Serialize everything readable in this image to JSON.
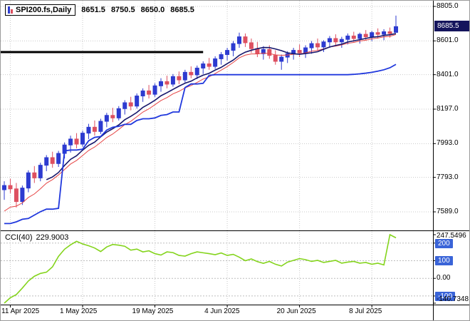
{
  "header": {
    "symbol": "SPI200.fs,Daily",
    "open": "8651.5",
    "high": "8750.5",
    "low": "8650.0",
    "close": "8685.5"
  },
  "indicator": {
    "name": "CCI(40)",
    "value": "229.9003"
  },
  "colors": {
    "bull": "#2d3bd0",
    "bear": "#dd5060",
    "ma_red": "#e64545",
    "ma_navy": "#16166b",
    "trail": "#2038dd",
    "cci": "#84d41c",
    "grid": "#c9c9c9",
    "level": "#bdbdbd",
    "badge_blue": "#3a64d8",
    "badge_dark": "#14145c",
    "axis_text": "#000000",
    "background": "#ffffff",
    "object_line": "#000000"
  },
  "chart_data": {
    "type": "candlestick",
    "title": "SPI200.fs Daily with CCI(40)",
    "x_ticks": [
      {
        "label": "11 Apr 2025",
        "index": 1
      },
      {
        "label": "1 May 2025",
        "index": 13
      },
      {
        "label": "19 May 2025",
        "index": 25
      },
      {
        "label": "4 Jun 2025",
        "index": 37
      },
      {
        "label": "20 Jun 2025",
        "index": 49
      },
      {
        "label": "8 Jul 2025",
        "index": 61
      }
    ],
    "price_pane": {
      "y_ticks": [
        {
          "label": "8805.0",
          "price": 8805.0
        },
        {
          "label": "8601.0",
          "price": 8601.0
        },
        {
          "label": "8401.0",
          "price": 8401.0
        },
        {
          "label": "8197.0",
          "price": 8197.0
        },
        {
          "label": "7993.0",
          "price": 7993.0
        },
        {
          "label": "7793.0",
          "price": 7793.0
        },
        {
          "label": "7589.0",
          "price": 7589.0
        }
      ],
      "last_price": 8685.5,
      "ma_navy": {
        "type": "sma",
        "period": 8
      },
      "ma_red": {
        "type": "ema",
        "alpha": 0.18,
        "seed_offset": -185
      },
      "hline": {
        "price": 8535,
        "to_index": 33
      },
      "candles": [
        [
          7720,
          7770,
          7660,
          7745
        ],
        [
          7745,
          7785,
          7700,
          7725
        ],
        [
          7725,
          7760,
          7615,
          7650
        ],
        [
          7650,
          7745,
          7630,
          7730
        ],
        [
          7730,
          7835,
          7705,
          7820
        ],
        [
          7820,
          7860,
          7760,
          7790
        ],
        [
          7790,
          7880,
          7770,
          7865
        ],
        [
          7865,
          7925,
          7830,
          7910
        ],
        [
          7910,
          7945,
          7850,
          7875
        ],
        [
          7875,
          7950,
          7855,
          7935
        ],
        [
          7935,
          8000,
          7905,
          7985
        ],
        [
          7985,
          8040,
          7940,
          8020
        ],
        [
          8020,
          8055,
          7965,
          7990
        ],
        [
          7990,
          8070,
          7975,
          8055
        ],
        [
          8055,
          8110,
          8020,
          8090
        ],
        [
          8090,
          8130,
          8040,
          8065
        ],
        [
          8065,
          8140,
          8050,
          8125
        ],
        [
          8125,
          8175,
          8090,
          8160
        ],
        [
          8160,
          8205,
          8120,
          8145
        ],
        [
          8145,
          8215,
          8130,
          8200
        ],
        [
          8200,
          8250,
          8165,
          8235
        ],
        [
          8235,
          8270,
          8190,
          8215
        ],
        [
          8215,
          8290,
          8200,
          8275
        ],
        [
          8275,
          8320,
          8240,
          8305
        ],
        [
          8305,
          8340,
          8260,
          8285
        ],
        [
          8285,
          8350,
          8270,
          8335
        ],
        [
          8335,
          8380,
          8300,
          8360
        ],
        [
          8360,
          8395,
          8320,
          8345
        ],
        [
          8345,
          8405,
          8330,
          8390
        ],
        [
          8390,
          8420,
          8345,
          8370
        ],
        [
          8370,
          8430,
          8355,
          8415
        ],
        [
          8415,
          8450,
          8380,
          8400
        ],
        [
          8400,
          8455,
          8375,
          8440
        ],
        [
          8440,
          8480,
          8405,
          8465
        ],
        [
          8465,
          8500,
          8430,
          8450
        ],
        [
          8450,
          8510,
          8435,
          8495
        ],
        [
          8495,
          8535,
          8460,
          8520
        ],
        [
          8520,
          8560,
          8485,
          8545
        ],
        [
          8545,
          8600,
          8510,
          8585
        ],
        [
          8585,
          8650,
          8560,
          8625
        ],
        [
          8625,
          8645,
          8565,
          8590
        ],
        [
          8590,
          8615,
          8530,
          8555
        ],
        [
          8555,
          8595,
          8505,
          8525
        ],
        [
          8525,
          8570,
          8490,
          8550
        ],
        [
          8550,
          8575,
          8495,
          8515
        ],
        [
          8515,
          8545,
          8460,
          8480
        ],
        [
          8480,
          8520,
          8430,
          8505
        ],
        [
          8505,
          8540,
          8470,
          8525
        ],
        [
          8525,
          8560,
          8490,
          8545
        ],
        [
          8545,
          8580,
          8505,
          8530
        ],
        [
          8530,
          8575,
          8500,
          8560
        ],
        [
          8560,
          8600,
          8525,
          8585
        ],
        [
          8585,
          8615,
          8545,
          8565
        ],
        [
          8565,
          8605,
          8535,
          8595
        ],
        [
          8595,
          8630,
          8560,
          8615
        ],
        [
          8615,
          8640,
          8575,
          8595
        ],
        [
          8595,
          8625,
          8560,
          8610
        ],
        [
          8610,
          8645,
          8580,
          8630
        ],
        [
          8630,
          8655,
          8595,
          8615
        ],
        [
          8615,
          8650,
          8585,
          8640
        ],
        [
          8640,
          8665,
          8605,
          8625
        ],
        [
          8625,
          8660,
          8600,
          8650
        ],
        [
          8650,
          8675,
          8615,
          8640
        ],
        [
          8640,
          8670,
          8605,
          8655
        ],
        [
          8655,
          8680,
          8620,
          8645
        ],
        [
          8651.5,
          8750.5,
          8650.0,
          8685.5
        ]
      ],
      "trail": {
        "values": [
          7520,
          7520,
          7530,
          7545,
          7550,
          7570,
          7590,
          7605,
          7605,
          7610,
          7950,
          7955,
          7955,
          7960,
          8010,
          8030,
          8035,
          8073,
          8090,
          8095,
          8107,
          8107,
          8130,
          8140,
          8140,
          8145,
          8160,
          8165,
          8180,
          8180,
          8325,
          8346,
          8346,
          8350,
          8397,
          8401,
          8401,
          8401,
          8401,
          8401,
          8401,
          8401,
          8401,
          8401,
          8401,
          8401,
          8401,
          8401,
          8401,
          8401,
          8401,
          8401,
          8401,
          8401,
          8401,
          8401,
          8401,
          8401,
          8403,
          8406,
          8410,
          8415,
          8422,
          8430,
          8442,
          8462
        ]
      }
    },
    "cci_pane": {
      "label": "CCI(40)",
      "current_value": 229.9003,
      "levels": [
        200,
        100,
        0,
        -100
      ],
      "ticks": [
        {
          "label": "247.5496",
          "value": 247.5496,
          "style": "plain"
        },
        {
          "label": "200",
          "value": 200,
          "style": "badge"
        },
        {
          "label": "100",
          "value": 100,
          "style": "badge"
        },
        {
          "label": "0.00",
          "value": 0,
          "style": "plain"
        },
        {
          "label": "-100",
          "value": -100,
          "style": "badge"
        },
        {
          "label": "-140.7348",
          "value": -140.7348,
          "style": "plain"
        }
      ],
      "values": [
        -140.7348,
        -110,
        -92,
        -55,
        -15,
        12,
        28,
        35,
        65,
        125,
        165,
        190,
        210,
        195,
        185,
        172,
        152,
        178,
        192,
        188,
        182,
        160,
        166,
        150,
        156,
        140,
        132,
        150,
        146,
        130,
        126,
        140,
        150,
        145,
        140,
        134,
        144,
        130,
        136,
        120,
        100,
        110,
        95,
        85,
        96,
        80,
        70,
        92,
        102,
        112,
        106,
        96,
        102,
        90,
        96,
        102,
        86,
        92,
        96,
        86,
        90,
        80,
        86,
        76,
        247.5496,
        229.9003
      ]
    }
  }
}
